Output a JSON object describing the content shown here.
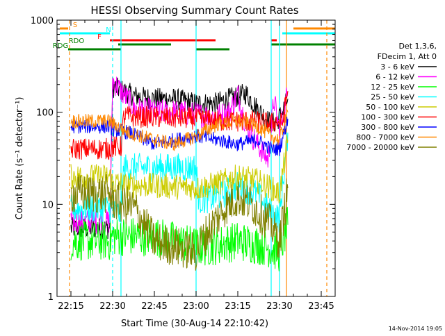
{
  "chart_data": {
    "type": "line",
    "title": "HESSI Observing Summary Count Rates",
    "xlabel": "Start Time (30-Aug-14 22:10:42)",
    "ylabel": "Count Rate (s⁻¹ detector⁻¹)",
    "y_scale": "log",
    "xlim": [
      "22:10",
      "23:50"
    ],
    "ylim": [
      1,
      1000
    ],
    "x_ticks": [
      "22:15",
      "22:30",
      "22:45",
      "23:00",
      "23:15",
      "23:30",
      "23:45"
    ],
    "y_ticks": [
      "1",
      "10",
      "100",
      "1000"
    ],
    "footer": "14-Nov-2014 19:05",
    "legend": {
      "placement": "right",
      "header": [
        "Det 1,3,6,",
        "FDecim 1, Att 0"
      ]
    },
    "series": [
      {
        "name": "3 - 6 keV",
        "color": "#000000",
        "x": [
          "22:15",
          "22:29",
          "22:30",
          "22:38",
          "22:45",
          "22:52",
          "23:00",
          "23:07",
          "23:15",
          "23:18",
          "23:22",
          "23:27",
          "23:29",
          "23:31",
          "23:33"
        ],
        "y": [
          5.5,
          5.5,
          190,
          150,
          140,
          140,
          125,
          125,
          150,
          160,
          110,
          75,
          80,
          100,
          140
        ]
      },
      {
        "name": "6 - 12 keV",
        "color": "#ff00ff",
        "x": [
          "22:15",
          "22:29",
          "22:30",
          "22:38",
          "22:45",
          "22:52",
          "23:00",
          "23:07",
          "23:12",
          "23:15",
          "23:18",
          "23:22",
          "23:26",
          "23:28",
          "23:30",
          "23:33"
        ],
        "y": [
          6.5,
          6.5,
          220,
          110,
          100,
          100,
          95,
          90,
          100,
          160,
          70,
          45,
          30,
          140,
          60,
          170
        ]
      },
      {
        "name": "12 - 25 keV",
        "color": "#00ff00",
        "x": [
          "22:15",
          "22:29",
          "22:30",
          "22:45",
          "23:00",
          "23:05",
          "23:15",
          "23:25",
          "23:30",
          "23:33"
        ],
        "y": [
          4,
          4,
          4.5,
          4.5,
          3.5,
          3.5,
          4,
          3.5,
          3,
          6
        ]
      },
      {
        "name": "25 - 50 keV",
        "color": "#00ffff",
        "x": [
          "22:15",
          "22:29",
          "22:30",
          "22:33",
          "22:34",
          "22:45",
          "23:00",
          "23:01",
          "23:08",
          "23:15",
          "23:22",
          "23:27",
          "23:28",
          "23:30",
          "23:33"
        ],
        "y": [
          9,
          9,
          8,
          8,
          25,
          25,
          25,
          11,
          12,
          16,
          13,
          8,
          8,
          7,
          60
        ]
      },
      {
        "name": "50 - 100 keV",
        "color": "#cccc00",
        "x": [
          "22:15",
          "22:29",
          "22:30",
          "22:33",
          "22:34",
          "22:45",
          "23:00",
          "23:01",
          "23:08",
          "23:15",
          "23:22",
          "23:27",
          "23:30",
          "23:33"
        ],
        "y": [
          20,
          20,
          17,
          17,
          16,
          16,
          15,
          15,
          17,
          20,
          18,
          15,
          13,
          50
        ]
      },
      {
        "name": "100 - 300 keV",
        "color": "#ff0000",
        "x": [
          "22:15",
          "22:29",
          "22:30",
          "22:33",
          "22:34",
          "22:45",
          "23:00",
          "23:08",
          "23:15",
          "23:20",
          "23:27",
          "23:29",
          "23:31",
          "23:33"
        ],
        "y": [
          40,
          40,
          42,
          42,
          90,
          88,
          85,
          80,
          80,
          80,
          75,
          80,
          75,
          170
        ]
      },
      {
        "name": "300 - 800 keV",
        "color": "#0000ff",
        "x": [
          "22:15",
          "22:29",
          "22:30",
          "22:36",
          "22:45",
          "22:52",
          "23:00",
          "23:08",
          "23:15",
          "23:22",
          "23:27",
          "23:30",
          "23:33"
        ],
        "y": [
          70,
          70,
          65,
          60,
          45,
          50,
          55,
          50,
          45,
          50,
          40,
          40,
          85
        ]
      },
      {
        "name": "800 - 7000 keV",
        "color": "#ff8800",
        "x": [
          "22:15",
          "22:29",
          "22:30",
          "22:36",
          "22:45",
          "22:52",
          "23:00",
          "23:08",
          "23:15",
          "23:22",
          "23:27",
          "23:30",
          "23:33"
        ],
        "y": [
          80,
          80,
          75,
          60,
          50,
          45,
          55,
          75,
          80,
          70,
          55,
          50,
          100
        ]
      },
      {
        "name": "7000 - 20000 keV",
        "color": "#808000",
        "x": [
          "22:15",
          "22:29",
          "22:30",
          "22:38",
          "22:45",
          "23:00",
          "23:03",
          "23:10",
          "23:15",
          "23:20",
          "23:27",
          "23:30",
          "23:33"
        ],
        "y": [
          13,
          13,
          11,
          9,
          4,
          3,
          4.5,
          9,
          12,
          10,
          6,
          4,
          15
        ]
      }
    ],
    "flag_bars": [
      {
        "label": "S",
        "color": "#ff8800",
        "segments": [
          [
            "22:11",
            "22:14"
          ],
          [
            "23:35",
            "23:50"
          ]
        ]
      },
      {
        "label": "N",
        "color": "#00ffff",
        "segments": [
          [
            "22:11",
            "22:29"
          ],
          [
            "23:31",
            "23:50"
          ]
        ]
      },
      {
        "label": "F",
        "color": "#ff0000",
        "segments": [
          [
            "22:29",
            "23:07"
          ],
          [
            "23:27",
            "23:29"
          ]
        ]
      },
      {
        "label": "RDO",
        "color": "#008000",
        "segments": [
          [
            "22:32",
            "22:51"
          ],
          [
            "23:27",
            "23:50"
          ]
        ]
      },
      {
        "label": "RDG",
        "color": "#008000",
        "segments": [
          [
            "22:14",
            "22:33"
          ],
          [
            "23:00",
            "23:12"
          ]
        ]
      }
    ],
    "vertical_markers": [
      {
        "t": "22:14.5",
        "color": "#ff8800",
        "style": "dashed"
      },
      {
        "t": "22:30",
        "color": "#00ffff",
        "style": "dashed"
      },
      {
        "t": "22:33",
        "color": "#00ffff",
        "style": "solid"
      },
      {
        "t": "23:00",
        "color": "#00ffff",
        "style": "solid"
      },
      {
        "t": "23:27",
        "color": "#00ffff",
        "style": "solid"
      },
      {
        "t": "23:30",
        "color": "#00ffff",
        "style": "solid"
      },
      {
        "t": "23:32.5",
        "color": "#ff8800",
        "style": "solid"
      },
      {
        "t": "23:47",
        "color": "#ff8800",
        "style": "dashed"
      }
    ]
  }
}
